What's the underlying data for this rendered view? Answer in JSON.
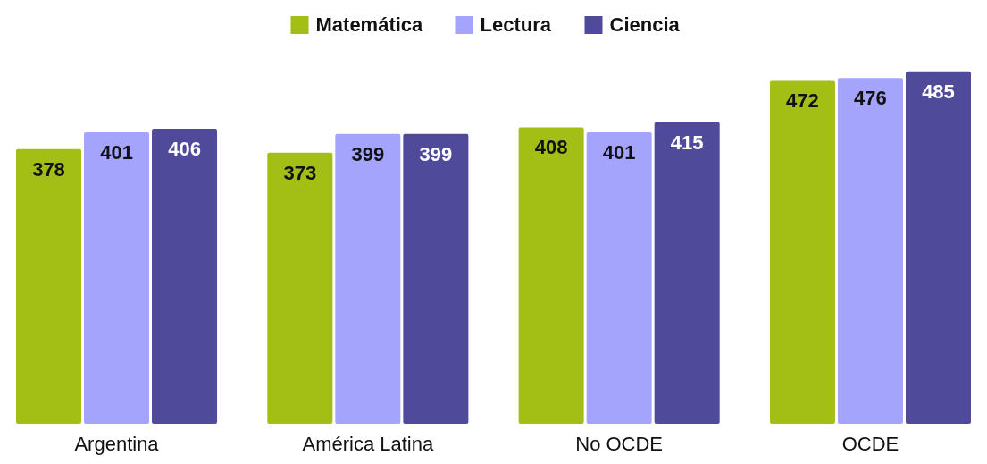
{
  "chart_data": {
    "type": "bar",
    "categories": [
      "Argentina",
      "América Latina",
      "No OCDE",
      "OCDE"
    ],
    "series": [
      {
        "name": "Matemática",
        "color": "#a3be14",
        "values": [
          378,
          373,
          408,
          472
        ]
      },
      {
        "name": "Lectura",
        "color": "#a4a4fc",
        "values": [
          401,
          399,
          401,
          476
        ]
      },
      {
        "name": "Ciencia",
        "color": "#4f4a9a",
        "values": [
          406,
          399,
          415,
          485
        ]
      }
    ],
    "data_labels": true,
    "legend": "top",
    "grid": false,
    "tick_labels": "x"
  }
}
